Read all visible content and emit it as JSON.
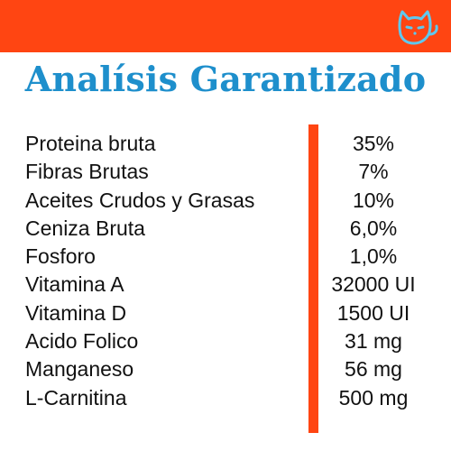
{
  "header": {
    "title": "Analísis Garantizado",
    "logo_icon": "cat-face-icon",
    "banner_color": "#ff4512",
    "title_color": "#1e8fcc",
    "logo_color": "#5fc8ee"
  },
  "table": {
    "rows": [
      {
        "name": "Proteina bruta",
        "value": "35%"
      },
      {
        "name": "Fibras Brutas",
        "value": "7%"
      },
      {
        "name": "Aceites Crudos y Grasas",
        "value": "10%"
      },
      {
        "name": "Ceniza Bruta",
        "value": "6,0%"
      },
      {
        "name": "Fosforo",
        "value": "1,0%"
      },
      {
        "name": "Vitamina A",
        "value": "32000 UI"
      },
      {
        "name": "Vitamina D",
        "value": "1500 UI"
      },
      {
        "name": "Acido Folico",
        "value": "31 mg"
      },
      {
        "name": "Manganeso",
        "value": "56 mg"
      },
      {
        "name": "L-Carnitina",
        "value": "500 mg"
      }
    ]
  }
}
